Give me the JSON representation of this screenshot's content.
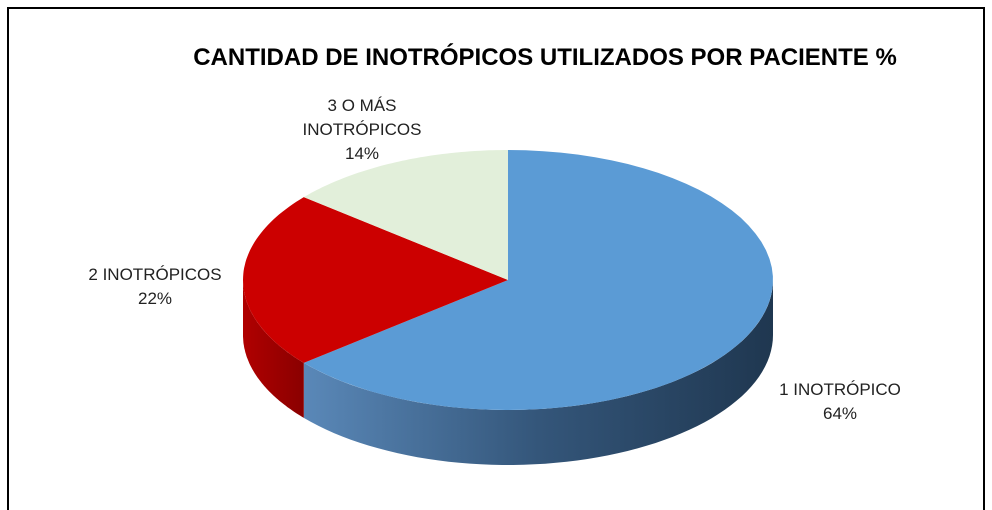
{
  "chart_data": {
    "type": "pie3d",
    "title": "CANTIDAD DE INOTRÓPICOS UTILIZADOS POR PACIENTE %",
    "categories": [
      "1  INOTRÓPICO",
      "2  INOTRÓPICOS",
      "3 O MÁS INOTRÓPICOS"
    ],
    "values": [
      64,
      22,
      14
    ],
    "value_labels": [
      "64%",
      "22%",
      "14%"
    ],
    "colors": [
      "#5b9bd5",
      "#cc0000",
      "#e2efda"
    ]
  }
}
